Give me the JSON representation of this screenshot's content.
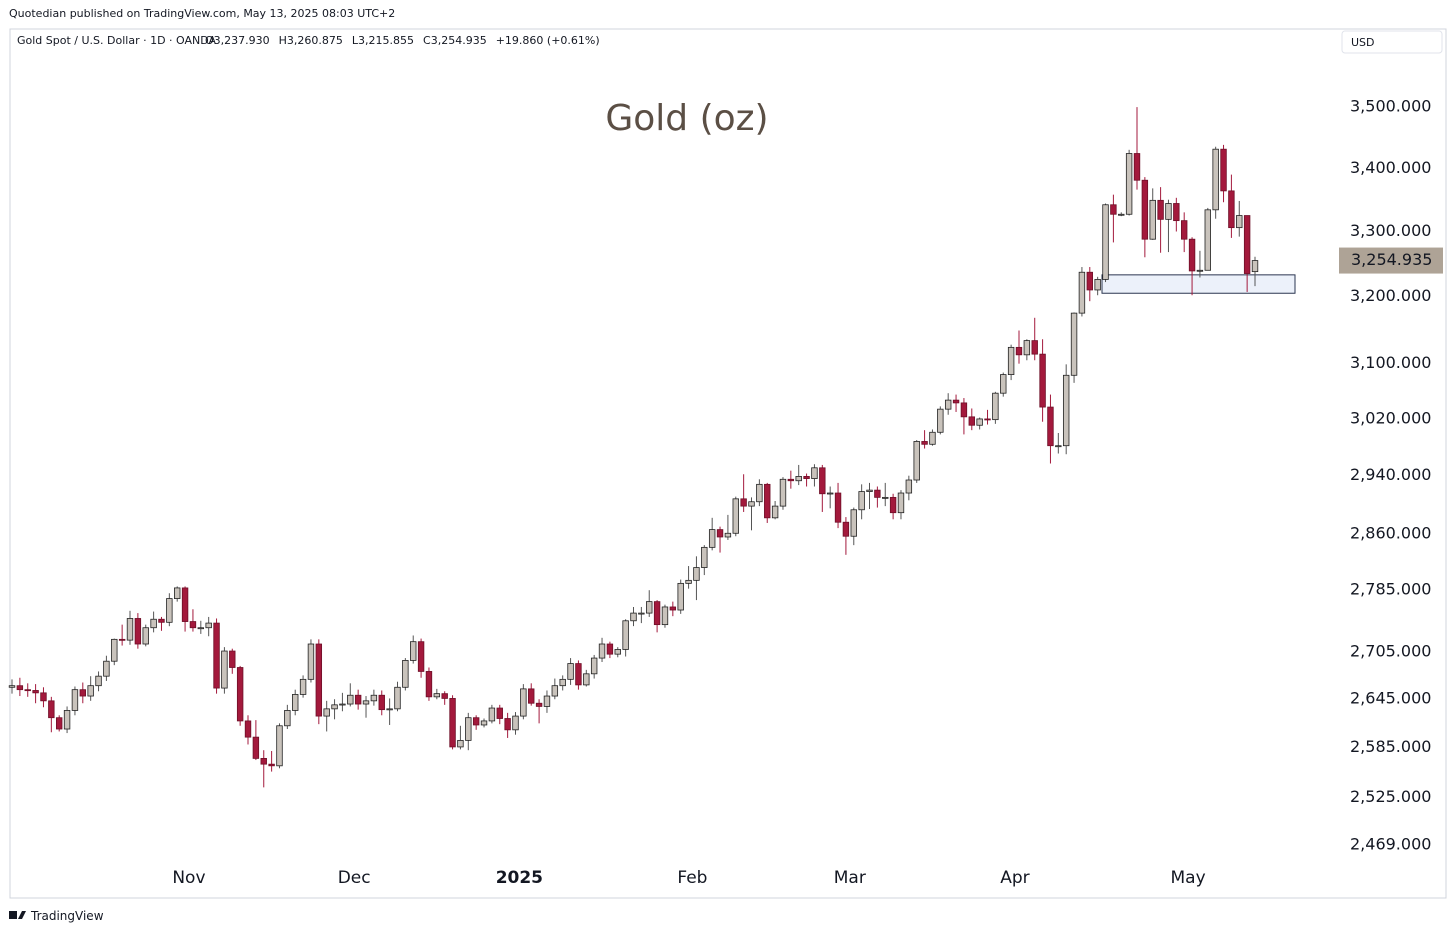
{
  "published": "Quotedian published on TradingView.com, May 13, 2025 08:03 UTC+2",
  "symbol": "Gold Spot / U.S. Dollar · 1D · OANDA",
  "ohlc_text": [
    "O3,237.930",
    "H3,260.875",
    "L3,215.855",
    "C3,254.935",
    "+19.860 (+0.61%)"
  ],
  "currency": "USD",
  "brand": "TradingView",
  "chart_data": {
    "type": "candlestick",
    "title": "Gold (oz)",
    "log_scale": true,
    "up_color": "#c9c3bc",
    "down_color": "#a3193c",
    "zone": {
      "low": 3205,
      "high": 3233
    },
    "last_label": "3,254.935",
    "ylim": [
      2449,
      3630
    ],
    "yticks": [
      {
        "value": 3500,
        "label": "3,500.000"
      },
      {
        "value": 3400,
        "label": "3,400.000"
      },
      {
        "value": 3300,
        "label": "3,300.000"
      },
      {
        "value": 3200,
        "label": "3,200.000"
      },
      {
        "value": 3100,
        "label": "3,100.000"
      },
      {
        "value": 3020,
        "label": "3,020.000"
      },
      {
        "value": 2940,
        "label": "2,940.000"
      },
      {
        "value": 2860,
        "label": "2,860.000"
      },
      {
        "value": 2785,
        "label": "2,785.000"
      },
      {
        "value": 2705,
        "label": "2,705.000"
      },
      {
        "value": 2645,
        "label": "2,645.000"
      },
      {
        "value": 2585,
        "label": "2,585.000"
      },
      {
        "value": 2525,
        "label": "2,525.000"
      },
      {
        "value": 2469,
        "label": "2,469.000"
      }
    ],
    "categories": [
      null,
      null,
      null,
      null,
      null,
      null,
      null,
      null,
      null,
      null,
      null,
      null,
      null,
      null,
      null,
      null,
      null,
      null,
      null,
      null,
      null,
      null,
      null,
      "Nov",
      null,
      null,
      null,
      null,
      null,
      null,
      null,
      null,
      null,
      null,
      null,
      null,
      null,
      null,
      null,
      null,
      null,
      null,
      null,
      null,
      "Dec",
      null,
      null,
      null,
      null,
      null,
      null,
      null,
      null,
      null,
      null,
      null,
      null,
      null,
      null,
      null,
      null,
      null,
      null,
      null,
      null,
      "2025",
      null,
      null,
      null,
      null,
      null,
      null,
      null,
      null,
      null,
      null,
      null,
      null,
      null,
      null,
      null,
      null,
      null,
      null,
      null,
      null,
      null,
      "Feb",
      null,
      null,
      null,
      null,
      null,
      null,
      null,
      null,
      null,
      null,
      null,
      null,
      null,
      null,
      null,
      null,
      null,
      null,
      null,
      "Mar",
      null,
      null,
      null,
      null,
      null,
      null,
      null,
      null,
      null,
      null,
      null,
      null,
      null,
      null,
      null,
      null,
      null,
      null,
      null,
      null,
      "Apr",
      null,
      null,
      null,
      null,
      null,
      null,
      null,
      null,
      null,
      null,
      null,
      null,
      null,
      null,
      null,
      null,
      null,
      null,
      null,
      null,
      null,
      "May",
      null,
      null,
      null,
      null,
      null,
      null,
      null,
      null
    ],
    "open": [
      2660,
      2662,
      2657,
      2656,
      2653,
      2643,
      2622,
      2608,
      2631,
      2657,
      2649,
      2662,
      2674,
      2693,
      2721,
      2720,
      2748,
      2715,
      2736,
      2747,
      2743,
      2774,
      2788,
      2744,
      2736,
      2736,
      2742,
      2659,
      2706,
      2685,
      2618,
      2598,
      2572,
      2565,
      2563,
      2612,
      2631,
      2651,
      2670,
      2715,
      2624,
      2633,
      2638,
      2639,
      2650,
      2639,
      2643,
      2650,
      2632,
      2633,
      2660,
      2694,
      2718,
      2680,
      2648,
      2652,
      2646,
      2586,
      2594,
      2622,
      2613,
      2618,
      2634,
      2621,
      2607,
      2624,
      2658,
      2640,
      2636,
      2649,
      2662,
      2670,
      2690,
      2663,
      2677,
      2697,
      2715,
      2702,
      2708,
      2745,
      2755,
      2755,
      2770,
      2740,
      2763,
      2759,
      2794,
      2798,
      2815,
      2842,
      2866,
      2856,
      2861,
      2908,
      2898,
      2904,
      2928,
      2882,
      2898,
      2935,
      2933,
      2939,
      2936,
      2951,
      2915,
      2916,
      2876,
      2857,
      2893,
      2918,
      2920,
      2910,
      2910,
      2889,
      2916,
      2934,
      2988,
      2984,
      3001,
      3034,
      3047,
      3043,
      3023,
      3011,
      3020,
      3019,
      3057,
      3084,
      3124,
      3113,
      3134,
      3114,
      3037,
      2982,
      2982,
      3083,
      3175,
      3237,
      3210,
      3226,
      3342,
      3327,
      3327,
      3424,
      3381,
      3288,
      3349,
      3319,
      3344,
      3317,
      3288,
      3239,
      3240,
      3334,
      3431,
      3364,
      3306,
      3325,
      3237.93
    ],
    "high": [
      2670,
      2672,
      2665,
      2664,
      2660,
      2648,
      2625,
      2636,
      2661,
      2666,
      2674,
      2680,
      2700,
      2722,
      2740,
      2758,
      2755,
      2740,
      2757,
      2750,
      2781,
      2790,
      2790,
      2760,
      2745,
      2750,
      2748,
      2711,
      2709,
      2687,
      2625,
      2619,
      2582,
      2581,
      2615,
      2638,
      2657,
      2675,
      2721,
      2721,
      2643,
      2645,
      2653,
      2665,
      2657,
      2649,
      2657,
      2656,
      2646,
      2667,
      2697,
      2726,
      2722,
      2685,
      2658,
      2655,
      2650,
      2612,
      2628,
      2625,
      2621,
      2638,
      2638,
      2628,
      2629,
      2664,
      2665,
      2645,
      2656,
      2671,
      2675,
      2697,
      2694,
      2682,
      2701,
      2723,
      2718,
      2711,
      2747,
      2763,
      2763,
      2785,
      2772,
      2766,
      2770,
      2799,
      2817,
      2830,
      2845,
      2882,
      2870,
      2886,
      2911,
      2942,
      2910,
      2935,
      2930,
      2905,
      2938,
      2947,
      2955,
      2943,
      2956,
      2955,
      2925,
      2930,
      2883,
      2896,
      2928,
      2930,
      2925,
      2930,
      2915,
      2920,
      2940,
      2990,
      3004,
      3005,
      3038,
      3057,
      3055,
      3050,
      3035,
      3022,
      3033,
      3059,
      3087,
      3128,
      3149,
      3136,
      3168,
      3136,
      3055,
      3000,
      3099,
      3176,
      3245,
      3245,
      3230,
      3344,
      3358,
      3330,
      3430,
      3500,
      3386,
      3368,
      3370,
      3350,
      3353,
      3330,
      3291,
      3270,
      3337,
      3435,
      3438,
      3390,
      3348,
      3325,
      3260.875
    ],
    "low": [
      2652,
      2649,
      2648,
      2640,
      2635,
      2604,
      2605,
      2603,
      2625,
      2640,
      2643,
      2655,
      2668,
      2688,
      2713,
      2714,
      2709,
      2712,
      2730,
      2732,
      2738,
      2770,
      2731,
      2731,
      2728,
      2725,
      2652,
      2652,
      2677,
      2612,
      2589,
      2570,
      2537,
      2556,
      2560,
      2608,
      2625,
      2647,
      2666,
      2614,
      2605,
      2620,
      2630,
      2636,
      2632,
      2622,
      2637,
      2625,
      2613,
      2630,
      2656,
      2690,
      2672,
      2643,
      2645,
      2638,
      2583,
      2583,
      2582,
      2607,
      2610,
      2615,
      2614,
      2597,
      2601,
      2620,
      2637,
      2615,
      2628,
      2645,
      2656,
      2663,
      2657,
      2661,
      2671,
      2692,
      2697,
      2698,
      2699,
      2738,
      2742,
      2750,
      2730,
      2736,
      2751,
      2754,
      2787,
      2772,
      2805,
      2838,
      2835,
      2852,
      2857,
      2890,
      2865,
      2898,
      2875,
      2880,
      2893,
      2922,
      2927,
      2925,
      2925,
      2890,
      2895,
      2868,
      2832,
      2845,
      2880,
      2894,
      2896,
      2898,
      2880,
      2880,
      2906,
      2930,
      2978,
      2982,
      2998,
      3026,
      3030,
      2998,
      3004,
      3005,
      3012,
      3013,
      3052,
      3076,
      3100,
      3105,
      3105,
      3016,
      2957,
      2971,
      2970,
      3072,
      3170,
      3193,
      3202,
      3222,
      3283,
      3324,
      3325,
      3366,
      3260,
      3287,
      3267,
      3268,
      3300,
      3268,
      3202,
      3229,
      3240,
      3320,
      3346,
      3290,
      3292,
      3207,
      3215.855
    ],
    "close": [
      2662,
      2657,
      2656,
      2653,
      2643,
      2622,
      2608,
      2631,
      2657,
      2649,
      2662,
      2674,
      2693,
      2721,
      2720,
      2748,
      2715,
      2736,
      2747,
      2743,
      2774,
      2788,
      2744,
      2736,
      2736,
      2742,
      2659,
      2706,
      2685,
      2618,
      2598,
      2572,
      2565,
      2563,
      2612,
      2631,
      2651,
      2670,
      2715,
      2624,
      2633,
      2638,
      2639,
      2650,
      2639,
      2643,
      2650,
      2632,
      2633,
      2660,
      2694,
      2718,
      2680,
      2648,
      2652,
      2646,
      2586,
      2594,
      2622,
      2613,
      2618,
      2634,
      2621,
      2607,
      2624,
      2658,
      2640,
      2636,
      2649,
      2662,
      2670,
      2690,
      2663,
      2677,
      2697,
      2715,
      2702,
      2708,
      2745,
      2755,
      2755,
      2770,
      2740,
      2763,
      2759,
      2794,
      2798,
      2815,
      2842,
      2866,
      2856,
      2861,
      2908,
      2898,
      2904,
      2928,
      2882,
      2898,
      2935,
      2933,
      2939,
      2936,
      2951,
      2915,
      2916,
      2876,
      2857,
      2893,
      2918,
      2920,
      2910,
      2910,
      2889,
      2916,
      2934,
      2988,
      2984,
      3001,
      3034,
      3047,
      3043,
      3023,
      3011,
      3020,
      3019,
      3057,
      3084,
      3124,
      3113,
      3134,
      3114,
      3037,
      2982,
      2982,
      3083,
      3175,
      3237,
      3210,
      3226,
      3342,
      3327,
      3327,
      3424,
      3381,
      3288,
      3349,
      3319,
      3344,
      3317,
      3288,
      3239,
      3240,
      3334,
      3431,
      3364,
      3306,
      3325,
      3235,
      3254.935
    ]
  }
}
